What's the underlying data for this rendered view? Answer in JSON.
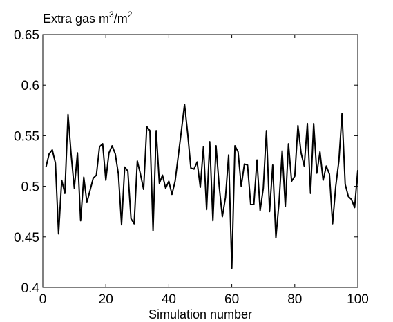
{
  "chart_data": {
    "type": "line",
    "title": "",
    "ylabel": "Extra gas m3/m2",
    "ylabel_parts": {
      "base": "Extra gas m",
      "exp1": "3",
      "mid": "/m",
      "exp2": "2"
    },
    "xlabel": "Simulation number",
    "xlim": [
      0,
      100
    ],
    "ylim": [
      0.4,
      0.65
    ],
    "xticks": [
      0,
      20,
      40,
      60,
      80,
      100
    ],
    "xtick_labels": [
      "0",
      "20",
      "40",
      "60",
      "80",
      "100"
    ],
    "yticks": [
      0.4,
      0.45,
      0.5,
      0.55,
      0.6,
      0.65
    ],
    "ytick_labels": [
      "0.4",
      "0.45",
      "0.5",
      "0.55",
      "0.6",
      "0.65"
    ],
    "grid": false,
    "line_color": "#000000",
    "x": [
      1,
      2,
      3,
      4,
      5,
      6,
      7,
      8,
      9,
      10,
      11,
      12,
      13,
      14,
      15,
      16,
      17,
      18,
      19,
      20,
      21,
      22,
      23,
      24,
      25,
      26,
      27,
      28,
      29,
      30,
      31,
      32,
      33,
      34,
      35,
      36,
      37,
      38,
      39,
      40,
      41,
      42,
      43,
      44,
      45,
      46,
      47,
      48,
      49,
      50,
      51,
      52,
      53,
      54,
      55,
      56,
      57,
      58,
      59,
      60,
      61,
      62,
      63,
      64,
      65,
      66,
      67,
      68,
      69,
      70,
      71,
      72,
      73,
      74,
      75,
      76,
      77,
      78,
      79,
      80,
      81,
      82,
      83,
      84,
      85,
      86,
      87,
      88,
      89,
      90,
      91,
      92,
      93,
      94,
      95,
      96,
      97,
      98,
      99,
      100
    ],
    "values": [
      0.519,
      0.532,
      0.536,
      0.523,
      0.453,
      0.506,
      0.493,
      0.571,
      0.531,
      0.498,
      0.533,
      0.466,
      0.509,
      0.484,
      0.496,
      0.508,
      0.511,
      0.539,
      0.542,
      0.506,
      0.533,
      0.54,
      0.532,
      0.512,
      0.462,
      0.519,
      0.515,
      0.468,
      0.463,
      0.525,
      0.512,
      0.497,
      0.559,
      0.555,
      0.456,
      0.555,
      0.503,
      0.511,
      0.498,
      0.505,
      0.492,
      0.505,
      0.53,
      0.555,
      0.581,
      0.552,
      0.518,
      0.517,
      0.524,
      0.499,
      0.539,
      0.477,
      0.544,
      0.466,
      0.54,
      0.5,
      0.47,
      0.489,
      0.531,
      0.419,
      0.54,
      0.534,
      0.5,
      0.522,
      0.521,
      0.482,
      0.482,
      0.526,
      0.476,
      0.498,
      0.555,
      0.475,
      0.521,
      0.449,
      0.484,
      0.535,
      0.48,
      0.542,
      0.505,
      0.51,
      0.56,
      0.533,
      0.52,
      0.562,
      0.493,
      0.562,
      0.513,
      0.534,
      0.506,
      0.52,
      0.512,
      0.463,
      0.5,
      0.525,
      0.572,
      0.502,
      0.49,
      0.487,
      0.479,
      0.516
    ]
  }
}
